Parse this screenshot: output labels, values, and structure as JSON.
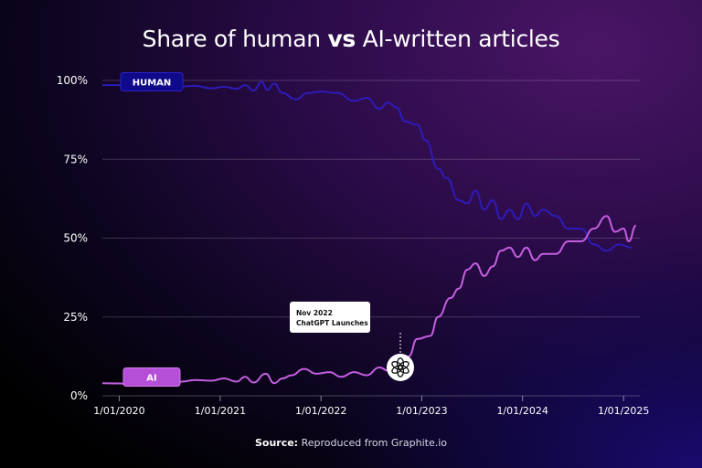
{
  "title_prefix": "Share of human ",
  "title_bold": "vs",
  "title_suffix": " AI-written articles",
  "source_label": "Source:",
  "source_text": " Reproduced from Graphite.io",
  "colors": {
    "human": "#2d1bb8",
    "ai": "#c45ee0",
    "human_label_bg": "#0e0a8a",
    "ai_label_bg": "#b54fd8"
  },
  "chart_data": {
    "type": "line",
    "ylim": [
      0,
      100
    ],
    "yticks": [
      0,
      25,
      50,
      75,
      100
    ],
    "ytick_labels": [
      "0%",
      "25%",
      "50%",
      "75%",
      "100%"
    ],
    "xlim": [
      "2019-11-01",
      "2025-03-01"
    ],
    "xtick_labels": [
      "1/01/2020",
      "1/01/2021",
      "1/01/2022",
      "1/01/2023",
      "1/01/2024",
      "1/01/2025"
    ],
    "xtick_dates": [
      "2020-01-01",
      "2021-01-01",
      "2022-01-01",
      "2023-01-01",
      "2024-01-01",
      "2025-01-01"
    ],
    "grid": "horizontal",
    "series": [
      {
        "name": "HUMAN",
        "points": [
          [
            "2019-11-01",
            98.5
          ],
          [
            "2020-02-01",
            98.5
          ],
          [
            "2020-04-01",
            98.2
          ],
          [
            "2020-06-01",
            99
          ],
          [
            "2020-08-01",
            98
          ],
          [
            "2020-10-01",
            98.3
          ],
          [
            "2020-12-01",
            97.5
          ],
          [
            "2021-01-15",
            98
          ],
          [
            "2021-03-01",
            97.3
          ],
          [
            "2021-04-01",
            98.5
          ],
          [
            "2021-05-01",
            96.8
          ],
          [
            "2021-06-01",
            99.5
          ],
          [
            "2021-06-20",
            97
          ],
          [
            "2021-07-15",
            99
          ],
          [
            "2021-08-15",
            96
          ],
          [
            "2021-10-01",
            94
          ],
          [
            "2021-11-15",
            96
          ],
          [
            "2022-01-01",
            96.5
          ],
          [
            "2022-03-01",
            96
          ],
          [
            "2022-05-01",
            93.5
          ],
          [
            "2022-06-15",
            94.5
          ],
          [
            "2022-08-01",
            91
          ],
          [
            "2022-09-01",
            93
          ],
          [
            "2022-10-01",
            91.5
          ],
          [
            "2022-11-01",
            87
          ],
          [
            "2022-12-15",
            86
          ],
          [
            "2023-01-15",
            81
          ],
          [
            "2023-03-01",
            72
          ],
          [
            "2023-04-01",
            69
          ],
          [
            "2023-05-15",
            62
          ],
          [
            "2023-06-15",
            61
          ],
          [
            "2023-07-15",
            65
          ],
          [
            "2023-08-15",
            59
          ],
          [
            "2023-09-15",
            62
          ],
          [
            "2023-10-15",
            56
          ],
          [
            "2023-11-15",
            59
          ],
          [
            "2023-12-15",
            56
          ],
          [
            "2024-01-15",
            61
          ],
          [
            "2024-02-15",
            57
          ],
          [
            "2024-03-15",
            59
          ],
          [
            "2024-05-01",
            57
          ],
          [
            "2024-06-15",
            53
          ],
          [
            "2024-08-01",
            53
          ],
          [
            "2024-09-15",
            48
          ],
          [
            "2024-11-01",
            46
          ],
          [
            "2024-12-15",
            48
          ],
          [
            "2025-02-01",
            47
          ]
        ]
      },
      {
        "name": "AI",
        "points": [
          [
            "2019-11-01",
            4
          ],
          [
            "2020-03-01",
            3.8
          ],
          [
            "2020-05-01",
            4.2
          ],
          [
            "2020-07-01",
            3.5
          ],
          [
            "2020-08-15",
            4.5
          ],
          [
            "2020-10-01",
            5
          ],
          [
            "2020-12-01",
            4.8
          ],
          [
            "2021-01-15",
            5.5
          ],
          [
            "2021-03-01",
            4.5
          ],
          [
            "2021-04-01",
            6
          ],
          [
            "2021-05-01",
            4.2
          ],
          [
            "2021-06-15",
            7
          ],
          [
            "2021-07-15",
            4
          ],
          [
            "2021-08-15",
            5.5
          ],
          [
            "2021-09-15",
            6.5
          ],
          [
            "2021-11-01",
            8.5
          ],
          [
            "2021-12-15",
            7
          ],
          [
            "2022-02-01",
            7.5
          ],
          [
            "2022-03-15",
            6
          ],
          [
            "2022-05-01",
            7.5
          ],
          [
            "2022-06-15",
            6.5
          ],
          [
            "2022-08-01",
            9
          ],
          [
            "2022-09-01",
            8
          ],
          [
            "2022-10-15",
            10
          ],
          [
            "2022-11-15",
            12.5
          ],
          [
            "2022-12-15",
            18
          ],
          [
            "2023-02-01",
            19
          ],
          [
            "2023-03-01",
            25
          ],
          [
            "2023-04-15",
            31
          ],
          [
            "2023-05-15",
            34
          ],
          [
            "2023-06-15",
            40
          ],
          [
            "2023-07-15",
            42
          ],
          [
            "2023-08-15",
            38
          ],
          [
            "2023-09-15",
            41
          ],
          [
            "2023-10-15",
            46
          ],
          [
            "2023-11-15",
            47
          ],
          [
            "2023-12-15",
            44
          ],
          [
            "2024-01-15",
            47
          ],
          [
            "2024-02-15",
            43
          ],
          [
            "2024-03-15",
            45
          ],
          [
            "2024-05-01",
            45
          ],
          [
            "2024-06-15",
            49
          ],
          [
            "2024-08-01",
            49
          ],
          [
            "2024-09-15",
            53
          ],
          [
            "2024-11-01",
            57
          ],
          [
            "2024-12-01",
            52
          ],
          [
            "2025-01-01",
            53
          ],
          [
            "2025-01-20",
            49
          ],
          [
            "2025-02-15",
            54
          ]
        ]
      }
    ],
    "annotation": {
      "date": "2022-11-01",
      "line1": "Nov 2022",
      "line2": "ChatGPT Launches",
      "icon": "openai-logo-icon"
    }
  }
}
